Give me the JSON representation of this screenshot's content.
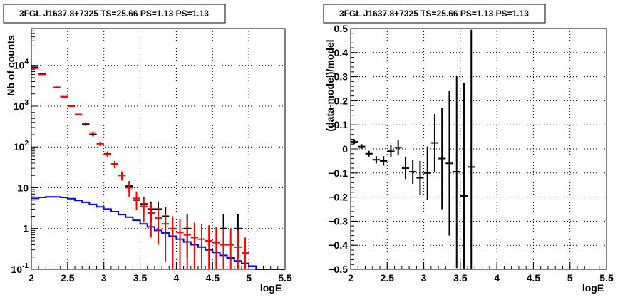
{
  "chart_data": [
    {
      "type": "scatter",
      "title": "3FGL J1637.8+7325 TS=25.66 PS=1.13 PS=1.13",
      "xlabel": "logE",
      "ylabel": "Nb of counts",
      "xlim": [
        2,
        5.5
      ],
      "ylim": [
        0.1,
        80000
      ],
      "yscale": "log",
      "grid": true,
      "x_ticks": [
        "2",
        "2.5",
        "3",
        "3.5",
        "4",
        "4.5",
        "5",
        "5.5"
      ],
      "y_ticks": [
        {
          "value": 0.1,
          "label": "10",
          "sup": "-1"
        },
        {
          "value": 1,
          "label": "1",
          "sup": ""
        },
        {
          "value": 10,
          "label": "10",
          "sup": ""
        },
        {
          "value": 100,
          "label": "10",
          "sup": "2"
        },
        {
          "value": 1000,
          "label": "10",
          "sup": "3"
        },
        {
          "value": 10000,
          "label": "10",
          "sup": "4"
        }
      ],
      "colors": {
        "data": "#000000",
        "model_points": "#ff0000",
        "model_line": "#0000ff"
      },
      "series": [
        {
          "name": "",
          "style": "points",
          "color": "#000000",
          "x": [
            2.05,
            2.15,
            2.35,
            2.45,
            2.55,
            2.75,
            2.85,
            2.95,
            3.05,
            3.15,
            3.25,
            3.35,
            3.45,
            3.55,
            3.65,
            3.75,
            3.85,
            4.15,
            4.65,
            4.85
          ],
          "y": [
            9000,
            6200,
            2900,
            1700,
            1020,
            360,
            200,
            120,
            67,
            38,
            20,
            11,
            5,
            4,
            3,
            3,
            2,
            1,
            1,
            1
          ],
          "err_low": [
            0,
            0,
            150,
            0,
            0,
            30,
            20,
            15,
            10,
            7,
            5,
            3.5,
            2.2,
            1.9,
            1.6,
            1.6,
            1.3,
            0.8,
            0.8,
            0.8
          ],
          "err_high": [
            0,
            0,
            150,
            0,
            0,
            30,
            20,
            15,
            10,
            7,
            5,
            3.5,
            2.2,
            1.9,
            1.6,
            1.6,
            1.3,
            1.3,
            1.3,
            1.3
          ]
        },
        {
          "name": "",
          "style": "points",
          "color": "#ff0000",
          "x": [
            2.05,
            2.15,
            2.35,
            2.45,
            2.55,
            2.65,
            2.75,
            2.85,
            2.95,
            3.05,
            3.15,
            3.25,
            3.35,
            3.45,
            3.55,
            3.65,
            3.75,
            3.85,
            3.95,
            4.05,
            4.15,
            4.25,
            4.35,
            4.45,
            4.55,
            4.65,
            4.75,
            4.85,
            4.95
          ],
          "y": [
            8500,
            6000,
            2900,
            1700,
            1000,
            630,
            380,
            220,
            120,
            65,
            37,
            20,
            10,
            5.5,
            3.5,
            2.4,
            1.8,
            1.3,
            1.0,
            0.8,
            0.7,
            0.6,
            0.55,
            0.5,
            0.45,
            0.4,
            0.4,
            0.35,
            0.25
          ],
          "err_low": [
            0,
            0,
            0,
            0,
            0,
            0,
            25,
            18,
            13,
            9,
            7,
            5,
            4,
            2.6,
            2.1,
            1.8,
            1.4,
            1.15,
            0.92,
            0.75,
            0.65,
            0.57,
            0.52,
            0.47,
            0.43,
            0.38,
            0.38,
            0.33,
            0.24
          ],
          "err_high": [
            0,
            0,
            0,
            0,
            0,
            0,
            25,
            18,
            13,
            9,
            7,
            5,
            4,
            2.6,
            2.1,
            1.8,
            1.4,
            1.15,
            1.0,
            0.95,
            0.85,
            0.8,
            0.75,
            0.7,
            0.65,
            0.6,
            0.6,
            0.55,
            0.35
          ]
        },
        {
          "name": "",
          "style": "step",
          "color": "#0000ff",
          "edges": [
            2.0,
            2.1,
            2.2,
            2.3,
            2.4,
            2.5,
            2.6,
            2.7,
            2.8,
            2.9,
            3.0,
            3.1,
            3.2,
            3.3,
            3.4,
            3.5,
            3.6,
            3.7,
            3.8,
            3.9,
            4.0,
            4.1,
            4.2,
            4.3,
            4.4,
            4.5,
            4.6,
            4.7,
            4.8,
            4.9,
            5.0,
            5.1,
            5.2,
            5.3,
            5.4,
            5.5
          ],
          "values": [
            5.5,
            5.8,
            6.0,
            6.0,
            5.8,
            5.4,
            4.9,
            4.4,
            3.9,
            3.4,
            3.0,
            2.6,
            2.2,
            1.9,
            1.6,
            1.3,
            1.1,
            0.9,
            0.78,
            0.65,
            0.55,
            0.47,
            0.4,
            0.35,
            0.3,
            0.26,
            0.22,
            0.19,
            0.16,
            0.14,
            0.12,
            0.1,
            0.1,
            0.1,
            0.1
          ]
        }
      ]
    },
    {
      "type": "scatter",
      "title": "3FGL J1637.8+7325 TS=25.66 PS=1.13 PS=1.13",
      "xlabel": "logE",
      "ylabel": "(data-model)/model",
      "xlim": [
        2,
        5.5
      ],
      "ylim": [
        -0.5,
        0.5
      ],
      "grid": true,
      "x_ticks": [
        "2",
        "2.5",
        "3",
        "3.5",
        "4",
        "4.5",
        "5",
        "5.5"
      ],
      "y_ticks": [
        "−0.5",
        "−0.4",
        "−0.3",
        "−0.2",
        "−0.1",
        "0",
        "0.1",
        "0.2",
        "0.3",
        "0.4",
        "0.5"
      ],
      "colors": {
        "data": "#000000"
      },
      "series": [
        {
          "name": "",
          "style": "points",
          "color": "#000000",
          "x": [
            2.05,
            2.15,
            2.25,
            2.35,
            2.45,
            2.55,
            2.65,
            2.75,
            2.85,
            2.95,
            3.05,
            3.15,
            3.25,
            3.35,
            3.45,
            3.55,
            3.65
          ],
          "y": [
            0.03,
            0.01,
            -0.02,
            -0.045,
            -0.05,
            -0.01,
            0.005,
            -0.08,
            -0.095,
            -0.12,
            -0.1,
            0.025,
            -0.04,
            -0.06,
            -0.095,
            -0.195,
            -0.075
          ],
          "err": [
            0.01,
            0.01,
            0.012,
            0.015,
            0.02,
            0.025,
            0.03,
            0.045,
            0.05,
            0.07,
            0.11,
            0.12,
            0.21,
            0.3,
            0.4,
            0.47,
            0.57
          ]
        }
      ]
    }
  ]
}
